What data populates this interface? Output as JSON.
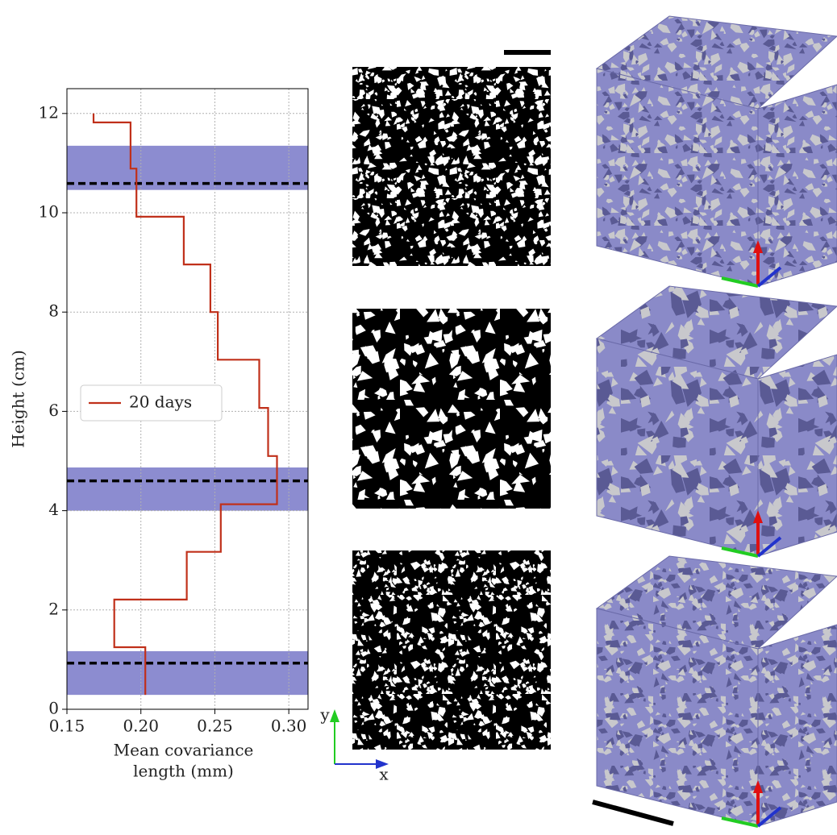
{
  "chart_data": {
    "type": "line",
    "ylabel": "Height (cm)",
    "xlabel": [
      "Mean covariance",
      "length (mm)"
    ],
    "xlim": [
      0.15,
      0.313
    ],
    "ylim": [
      0,
      12.5
    ],
    "xticks": [
      0.15,
      {
        "value": 0.2,
        "label": "0.20"
      },
      0.25,
      {
        "value": 0.3,
        "label": "0.30"
      }
    ],
    "yticks": [
      0,
      2,
      4,
      6,
      8,
      10,
      12
    ],
    "grid": true,
    "legend": "center left",
    "series": [
      {
        "name": "20 days",
        "color": "#c0301a",
        "x": [
          0.203,
          0.203,
          0.182,
          0.182,
          0.231,
          0.231,
          0.254,
          0.254,
          0.292,
          0.292,
          0.286,
          0.286,
          0.28,
          0.28,
          0.252,
          0.252,
          0.247,
          0.247,
          0.229,
          0.229,
          0.197,
          0.197,
          0.193,
          0.193,
          0.168,
          0.168
        ],
        "values": [
          0.29,
          1.25,
          1.25,
          2.21,
          2.21,
          3.17,
          3.17,
          4.13,
          4.13,
          5.1,
          5.1,
          6.07,
          6.07,
          7.04,
          7.04,
          8.0,
          8.0,
          8.96,
          8.96,
          9.92,
          9.92,
          10.89,
          10.89,
          11.82,
          11.82,
          12.0
        ]
      }
    ],
    "bands": [
      {
        "ymin": 0.29,
        "ymax": 1.17,
        "line": 0.93
      },
      {
        "ymin": 4.0,
        "ymax": 4.87,
        "line": 4.6
      },
      {
        "ymin": 10.46,
        "ymax": 11.35,
        "line": 10.59
      }
    ],
    "band_color": "#8c8cd0"
  },
  "annotations": {
    "y_axis": "y",
    "x_axis": "x"
  }
}
